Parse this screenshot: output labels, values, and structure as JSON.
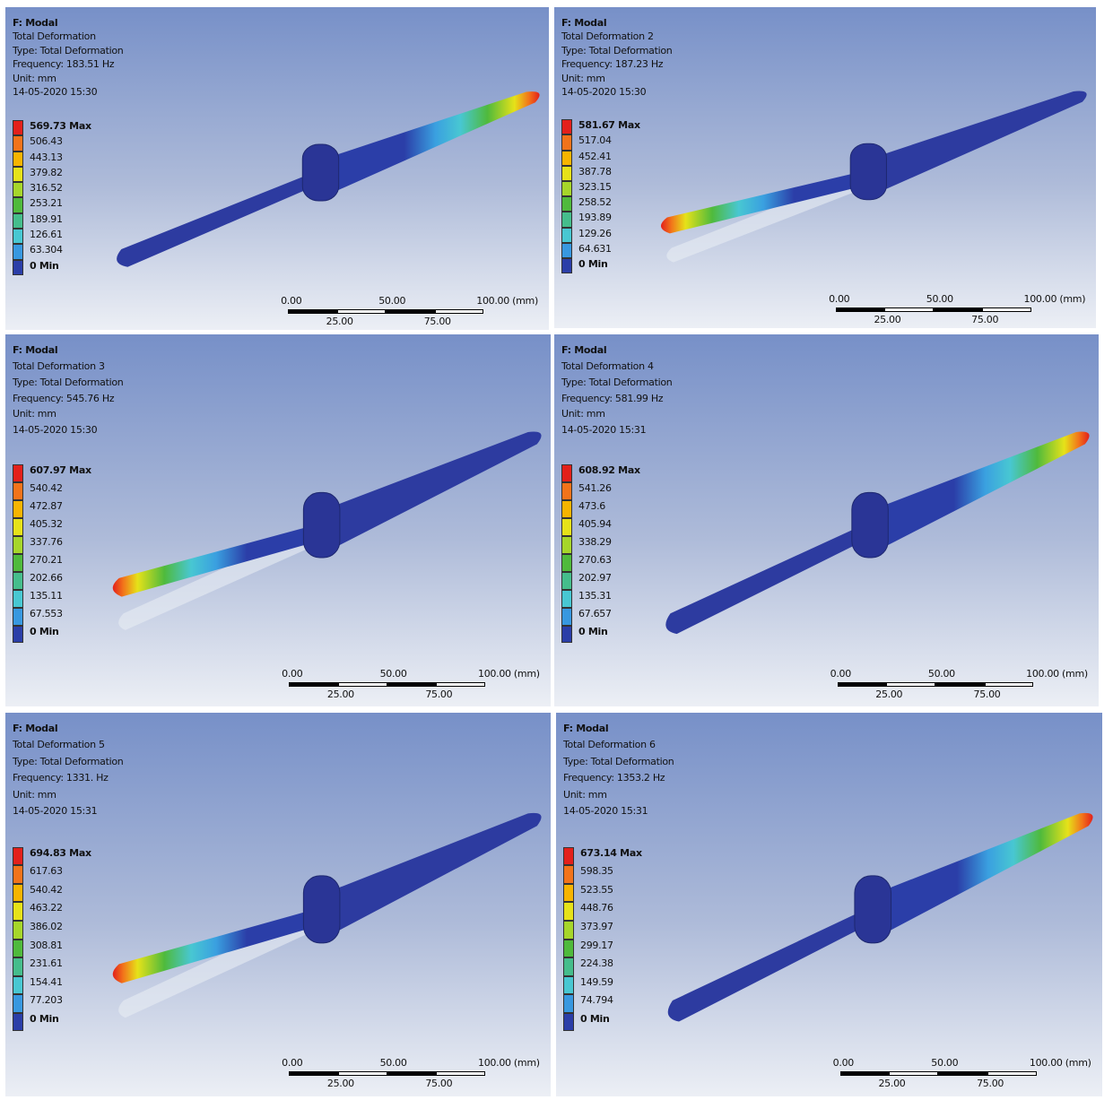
{
  "panels": [
    {
      "header": [
        "F: Modal",
        "Total Deformation",
        "Type: Total Deformation",
        "Frequency: 183.51 Hz",
        "Unit: mm",
        "14-05-2020 15:30"
      ],
      "legend": [
        "569.73 Max",
        "506.43",
        "443.13",
        "379.82",
        "316.52",
        "253.21",
        "189.91",
        "126.61",
        "63.304",
        "0 Min"
      ],
      "scale": {
        "top": [
          "0.00",
          "50.00",
          "100.00 (mm)"
        ],
        "bottom": [
          "25.00",
          "75.00"
        ]
      }
    },
    {
      "header": [
        "F: Modal",
        "Total Deformation 2",
        "Type: Total Deformation",
        "Frequency: 187.23 Hz",
        "Unit: mm",
        "14-05-2020 15:30"
      ],
      "legend": [
        "581.67 Max",
        "517.04",
        "452.41",
        "387.78",
        "323.15",
        "258.52",
        "193.89",
        "129.26",
        "64.631",
        "0 Min"
      ],
      "scale": {
        "top": [
          "0.00",
          "50.00",
          "100.00 (mm)"
        ],
        "bottom": [
          "25.00",
          "75.00"
        ]
      }
    },
    {
      "header": [
        "F: Modal",
        "Total Deformation 3",
        "Type: Total Deformation",
        "Frequency: 545.76 Hz",
        "Unit: mm",
        "14-05-2020 15:30"
      ],
      "legend": [
        "607.97 Max",
        "540.42",
        "472.87",
        "405.32",
        "337.76",
        "270.21",
        "202.66",
        "135.11",
        "67.553",
        "0 Min"
      ],
      "scale": {
        "top": [
          "0.00",
          "50.00",
          "100.00 (mm)"
        ],
        "bottom": [
          "25.00",
          "75.00"
        ]
      }
    },
    {
      "header": [
        "F: Modal",
        "Total Deformation 4",
        "Type: Total Deformation",
        "Frequency: 581.99 Hz",
        "Unit: mm",
        "14-05-2020 15:31"
      ],
      "legend": [
        "608.92 Max",
        "541.26",
        "473.6",
        "405.94",
        "338.29",
        "270.63",
        "202.97",
        "135.31",
        "67.657",
        "0 Min"
      ],
      "scale": {
        "top": [
          "0.00",
          "50.00",
          "100.00 (mm)"
        ],
        "bottom": [
          "25.00",
          "75.00"
        ]
      }
    },
    {
      "header": [
        "F: Modal",
        "Total Deformation 5",
        "Type: Total Deformation",
        "Frequency: 1331. Hz",
        "Unit: mm",
        "14-05-2020 15:31"
      ],
      "legend": [
        "694.83 Max",
        "617.63",
        "540.42",
        "463.22",
        "386.02",
        "308.81",
        "231.61",
        "154.41",
        "77.203",
        "0 Min"
      ],
      "scale": {
        "top": [
          "0.00",
          "50.00",
          "100.00 (mm)"
        ],
        "bottom": [
          "25.00",
          "75.00"
        ]
      }
    },
    {
      "header": [
        "F: Modal",
        "Total Deformation 6",
        "Type: Total Deformation",
        "Frequency: 1353.2 Hz",
        "Unit: mm",
        "14-05-2020 15:31"
      ],
      "legend": [
        "673.14 Max",
        "598.35",
        "523.55",
        "448.76",
        "373.97",
        "299.17",
        "224.38",
        "149.59",
        "74.794",
        "0 Min"
      ],
      "scale": {
        "top": [
          "0.00",
          "50.00",
          "100.00 (mm)"
        ],
        "bottom": [
          "25.00",
          "75.00"
        ]
      }
    }
  ]
}
